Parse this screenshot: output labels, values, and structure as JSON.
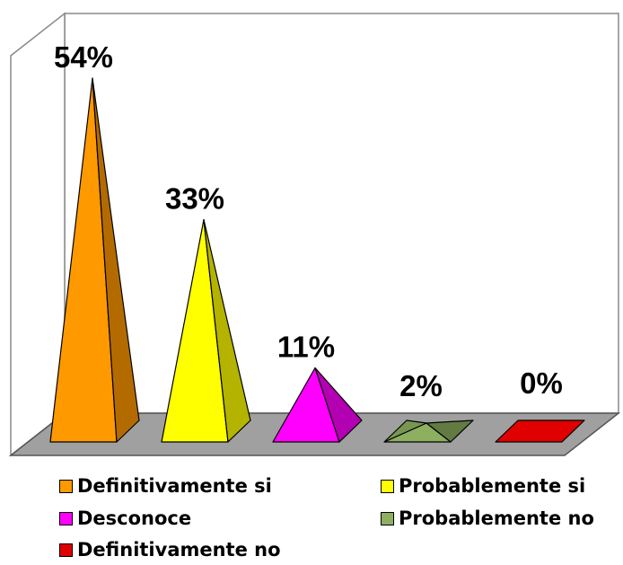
{
  "chart_data": {
    "type": "bar",
    "style": "3d-pyramid",
    "categories": [
      "Definitivamente si",
      "Probablemente si",
      "Desconoce",
      "Probablemente no",
      "Definitivamente no"
    ],
    "values": [
      54,
      33,
      11,
      2,
      0
    ],
    "value_labels": [
      "54%",
      "33%",
      "11%",
      "2%",
      "0%"
    ],
    "colors": [
      "#ff9900",
      "#ffff00",
      "#ff00ff",
      "#8db060",
      "#e00000"
    ],
    "ylim": [
      0,
      54
    ],
    "grid": false,
    "legend": "bottom"
  }
}
